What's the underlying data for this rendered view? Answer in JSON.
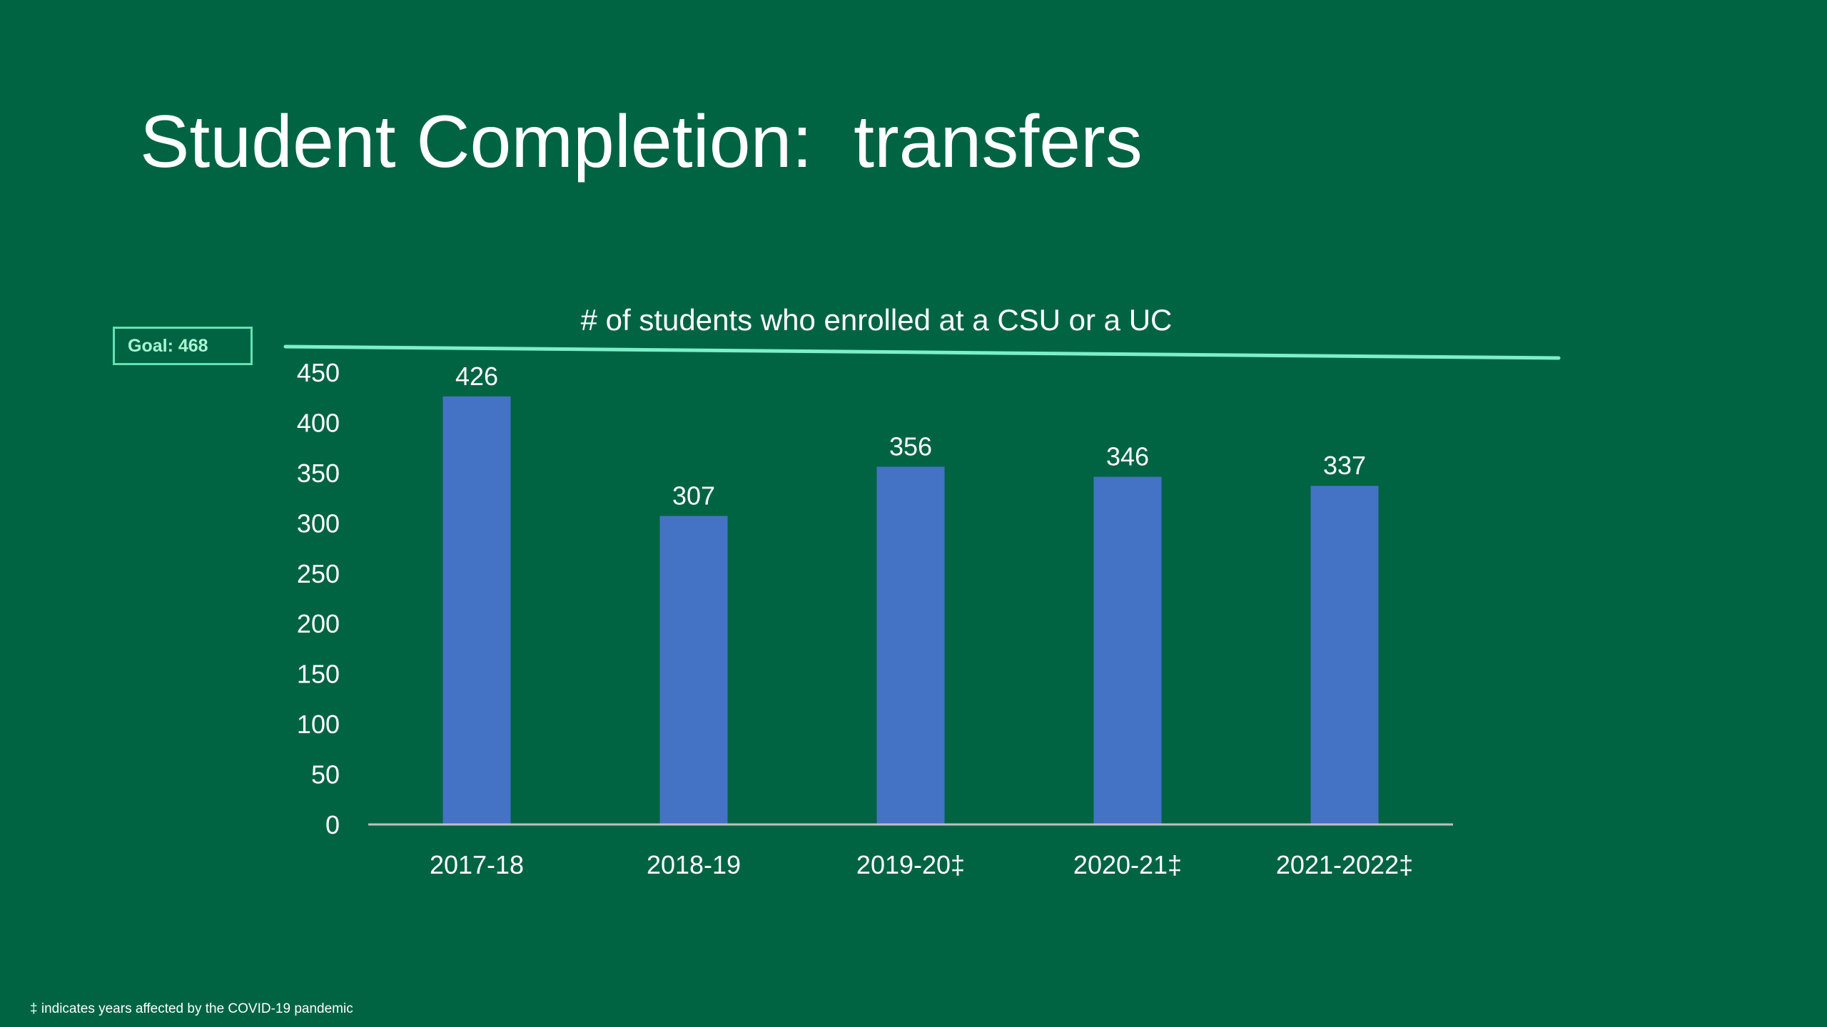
{
  "slide": {
    "title": "Student Completion:  transfers",
    "goal_label": "Goal: 468",
    "footnote": "‡ indicates years affected by the COVID-19 pandemic"
  },
  "colors": {
    "background": "#006443",
    "bar": "#4472C4",
    "goal_line": "#7CF0C8",
    "axis": "#BFBFBF"
  },
  "chart_data": {
    "type": "bar",
    "title": "# of students who enrolled at a CSU or a UC",
    "categories": [
      "2017-18",
      "2018-19",
      "2019-20‡",
      "2020-21‡",
      "2021-2022‡"
    ],
    "values": [
      426,
      307,
      356,
      346,
      337
    ],
    "yticks": [
      "0",
      "50",
      "100",
      "150",
      "200",
      "250",
      "300",
      "350",
      "400",
      "450"
    ],
    "ylim": [
      0,
      450
    ],
    "goal": 468,
    "data_labels": [
      "426",
      "307",
      "356",
      "346",
      "337"
    ],
    "grid": false,
    "legend": "none"
  }
}
